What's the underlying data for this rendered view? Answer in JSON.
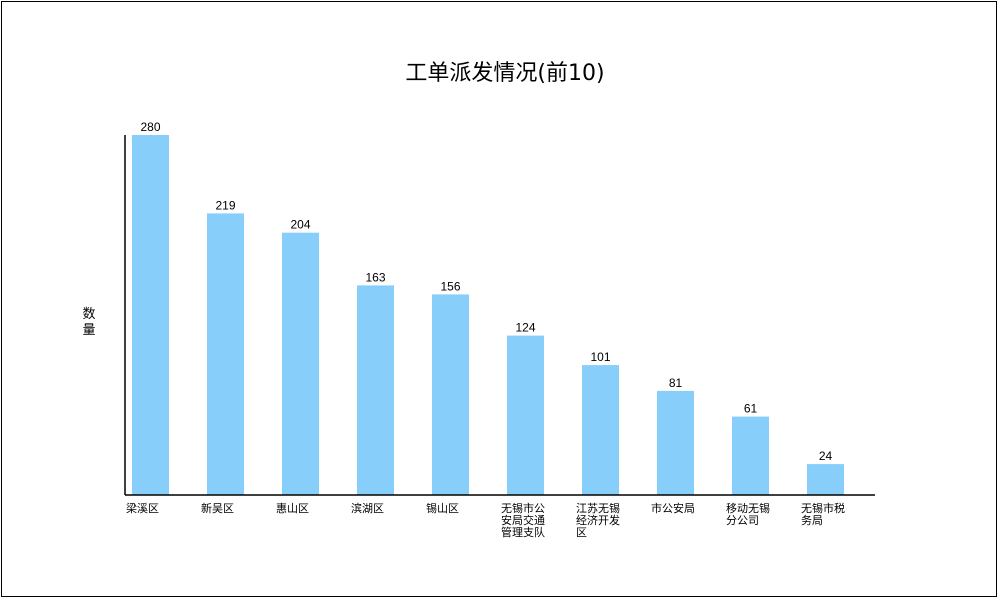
{
  "chart_data": {
    "type": "bar",
    "title": "工单派发情况(前10)",
    "ylabel": "数量",
    "xlabel": "",
    "categories": [
      "梁溪区",
      "新吴区",
      "惠山区",
      "滨湖区",
      "锡山区",
      "无锡市公安局交通管理支队",
      "江苏无锡经济开发区",
      "市公安局",
      "移动无锡分公司",
      "无锡市税务局"
    ],
    "category_lines": [
      [
        "梁溪区"
      ],
      [
        "新吴区"
      ],
      [
        "惠山区"
      ],
      [
        "滨湖区"
      ],
      [
        "锡山区"
      ],
      [
        "无锡市公",
        "安局交通",
        "管理支队"
      ],
      [
        "江苏无锡",
        "经济开发",
        "区"
      ],
      [
        "市公安局"
      ],
      [
        "移动无锡",
        "分公司"
      ],
      [
        "无锡市税",
        "务局"
      ]
    ],
    "values": [
      280,
      219,
      204,
      163,
      156,
      124,
      101,
      81,
      61,
      24
    ],
    "ylim": [
      0,
      280
    ],
    "bar_color": "#87CEFA",
    "grid": false,
    "legend": "none"
  }
}
